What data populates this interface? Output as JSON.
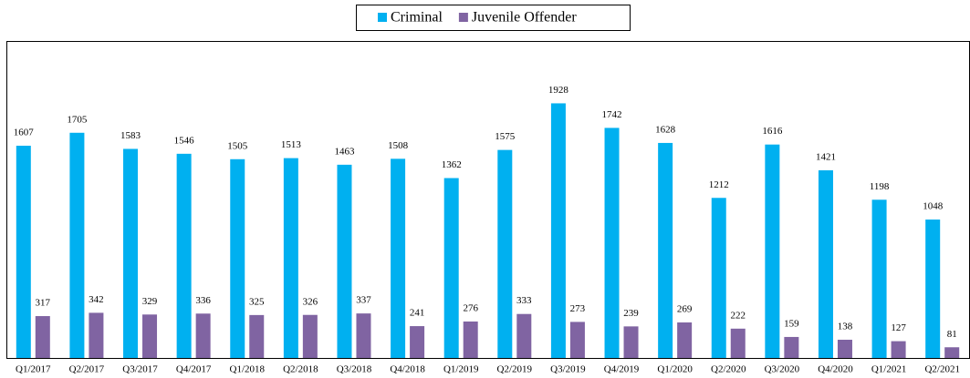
{
  "chart_data": {
    "type": "bar",
    "categories": [
      "Q1/2017",
      "Q2/2017",
      "Q3/2017",
      "Q4/2017",
      "Q1/2018",
      "Q2/2018",
      "Q3/2018",
      "Q4/2018",
      "Q1/2019",
      "Q2/2019",
      "Q3/2019",
      "Q4/2019",
      "Q1/2020",
      "Q2/2020",
      "Q3/2020",
      "Q4/2020",
      "Q1/2021",
      "Q2/2021"
    ],
    "series": [
      {
        "name": "Criminal",
        "color": "#00b0f0",
        "values": [
          1607,
          1705,
          1583,
          1546,
          1505,
          1513,
          1463,
          1508,
          1362,
          1575,
          1928,
          1742,
          1628,
          1212,
          1616,
          1421,
          1198,
          1048
        ]
      },
      {
        "name": "Juvenile Offender",
        "color": "#8064a2",
        "values": [
          317,
          342,
          329,
          336,
          325,
          326,
          337,
          241,
          276,
          333,
          273,
          239,
          269,
          222,
          159,
          138,
          127,
          81
        ]
      }
    ],
    "ylim": [
      0,
      2400
    ],
    "legend": "top"
  }
}
